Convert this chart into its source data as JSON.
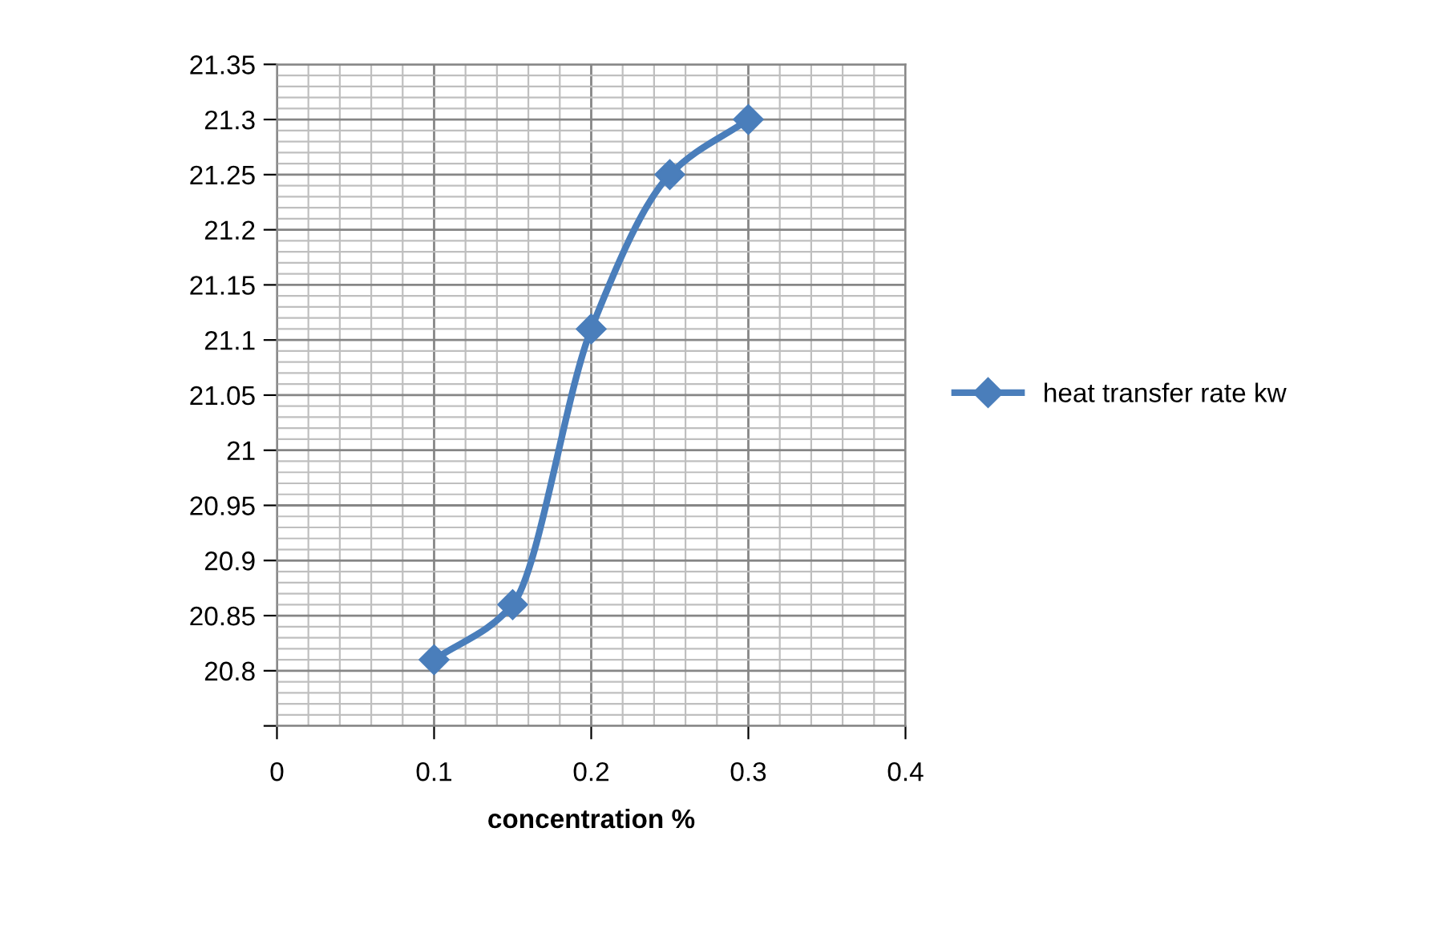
{
  "chart_data": {
    "type": "line",
    "xlabel": "concentration %",
    "x": [
      0.1,
      0.15,
      0.2,
      0.25,
      0.3
    ],
    "series": [
      {
        "name": "heat transfer rate kw",
        "color": "#4a7ebb",
        "values": [
          20.81,
          20.86,
          21.11,
          21.25,
          21.3
        ]
      }
    ],
    "xlim": [
      0,
      0.4
    ],
    "xticks": [
      0,
      0.1,
      0.2,
      0.3,
      0.4
    ],
    "ylim": [
      20.75,
      21.35
    ],
    "yticks": [
      {
        "value": 20.75,
        "label": null
      },
      20.8,
      20.85,
      20.9,
      20.95,
      21,
      21.05,
      21.1,
      21.15,
      21.2,
      21.25,
      21.3,
      21.35
    ],
    "grid": true,
    "legend": "right",
    "marker": "diamond",
    "line_style": "solid"
  }
}
